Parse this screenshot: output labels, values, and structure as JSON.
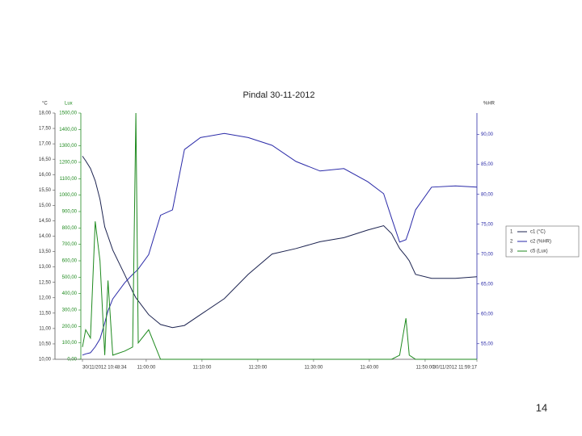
{
  "chart_data": {
    "type": "line",
    "title": "Pindal 30-11-2012",
    "axis_labels": {
      "y": "°C",
      "y3": "Lux",
      "y2": "%HR"
    },
    "x": [
      "10:48:34",
      "10:49:09",
      "10:50:00",
      "10:50:51",
      "10:51:43",
      "10:52:34",
      "10:53:09",
      "10:54:00",
      "10:56:09",
      "10:57:34",
      "10:58:09",
      "10:58:34",
      "11:00:26",
      "11:02:34",
      "11:04:43",
      "11:06:51",
      "11:09:43",
      "11:14:00",
      "11:18:17",
      "11:22:34",
      "11:26:51",
      "11:31:09",
      "11:35:26",
      "11:39:43",
      "11:42:34",
      "11:44:00",
      "11:45:26",
      "11:46:34",
      "11:47:09",
      "11:48:17",
      "11:51:09",
      "11:55:26",
      "11:59:17"
    ],
    "xlim": [
      "10:48:34",
      "11:59:17"
    ],
    "xticks": [
      {
        "value": "10:48:34",
        "label": "30/11/2012 10:48:34"
      },
      "11:00:00",
      "11:10:00",
      "11:20:00",
      "11:30:00",
      "11:40:00",
      "11:50:00",
      {
        "value": "11:59:17",
        "label": "30/11/2012 11:59:17"
      }
    ],
    "ylim": [
      10,
      18
    ],
    "yticks": [
      {
        "value": 10,
        "label": "10,00"
      },
      {
        "value": 10.5,
        "label": "10,50"
      },
      {
        "value": 11,
        "label": "11,00"
      },
      {
        "value": 11.5,
        "label": "11,50"
      },
      {
        "value": 12,
        "label": "12,00"
      },
      {
        "value": 12.5,
        "label": "12,50"
      },
      {
        "value": 13,
        "label": "13,00"
      },
      {
        "value": 13.5,
        "label": "13,50"
      },
      {
        "value": 14,
        "label": "14,00"
      },
      {
        "value": 14.5,
        "label": "14,50"
      },
      {
        "value": 15,
        "label": "15,00"
      },
      {
        "value": 15.5,
        "label": "15,50"
      },
      {
        "value": 16,
        "label": "16,00"
      },
      {
        "value": 16.5,
        "label": "16,50"
      },
      {
        "value": 17,
        "label": "17,00"
      },
      {
        "value": 17.5,
        "label": "17,50"
      },
      {
        "value": 18,
        "label": "18,00"
      }
    ],
    "y3lim": [
      0,
      1500
    ],
    "y3ticks": [
      {
        "value": 0,
        "label": "0,00"
      },
      {
        "value": 100,
        "label": "100,00"
      },
      {
        "value": 200,
        "label": "200,00"
      },
      {
        "value": 300,
        "label": "300,00"
      },
      {
        "value": 400,
        "label": "400,00"
      },
      {
        "value": 500,
        "label": "500,00"
      },
      {
        "value": 600,
        "label": "600,00"
      },
      {
        "value": 700,
        "label": "700,00"
      },
      {
        "value": 800,
        "label": "800,00"
      },
      {
        "value": 900,
        "label": "900,00"
      },
      {
        "value": 1000,
        "label": "1000,00"
      },
      {
        "value": 1100,
        "label": "1100,00"
      },
      {
        "value": 1200,
        "label": "1200,00"
      },
      {
        "value": 1300,
        "label": "1300,00"
      },
      {
        "value": 1400,
        "label": "1400,00"
      },
      {
        "value": 1500,
        "label": "1500,00"
      }
    ],
    "y2lim": [
      52.4,
      93.6
    ],
    "y2ticks": [
      {
        "value": 55,
        "label": "55,00"
      },
      {
        "value": 60,
        "label": "60,00"
      },
      {
        "value": 65,
        "label": "65,00"
      },
      {
        "value": 70,
        "label": "70,00"
      },
      {
        "value": 75,
        "label": "75,00"
      },
      {
        "value": 80,
        "label": "80,00"
      },
      {
        "value": 85,
        "label": "85,00"
      },
      {
        "value": 90,
        "label": "90,00"
      }
    ],
    "legend": "right",
    "series": [
      {
        "id": "1",
        "name": "c1 (°C)",
        "color": "#1c2350",
        "axis": "y",
        "values": [
          16.6,
          16.45,
          16.2,
          15.8,
          15.2,
          14.3,
          14.0,
          13.55,
          12.75,
          12.2,
          12.0,
          11.9,
          11.45,
          11.13,
          11.03,
          11.1,
          11.45,
          11.97,
          12.76,
          13.42,
          13.6,
          13.82,
          13.95,
          14.2,
          14.34,
          14.08,
          13.6,
          13.35,
          13.2,
          12.76,
          12.63,
          12.63,
          12.68
        ]
      },
      {
        "id": "2",
        "name": "c2 (%HR)",
        "color": "#2a2aa8",
        "axis": "y2",
        "values": [
          53.1,
          53.3,
          53.5,
          54.5,
          55.8,
          58.5,
          60.5,
          62.5,
          65.2,
          66.6,
          67.1,
          67.5,
          69.9,
          76.5,
          77.4,
          87.5,
          89.5,
          90.2,
          89.5,
          88.2,
          85.5,
          83.9,
          84.3,
          82.1,
          80.1,
          76.0,
          72.0,
          72.4,
          74.0,
          77.4,
          81.2,
          81.4,
          81.2
        ]
      },
      {
        "id": "3",
        "name": "c5 (Lux)",
        "color": "#1f8a1f",
        "axis": "y3",
        "values": [
          75,
          180,
          130,
          840,
          600,
          25,
          480,
          25,
          50,
          75,
          1500,
          100,
          180,
          0,
          0,
          0,
          0,
          0,
          0,
          0,
          0,
          0,
          0,
          0,
          0,
          0,
          25,
          250,
          25,
          0,
          0,
          0,
          0
        ]
      }
    ]
  },
  "page_number": "14"
}
